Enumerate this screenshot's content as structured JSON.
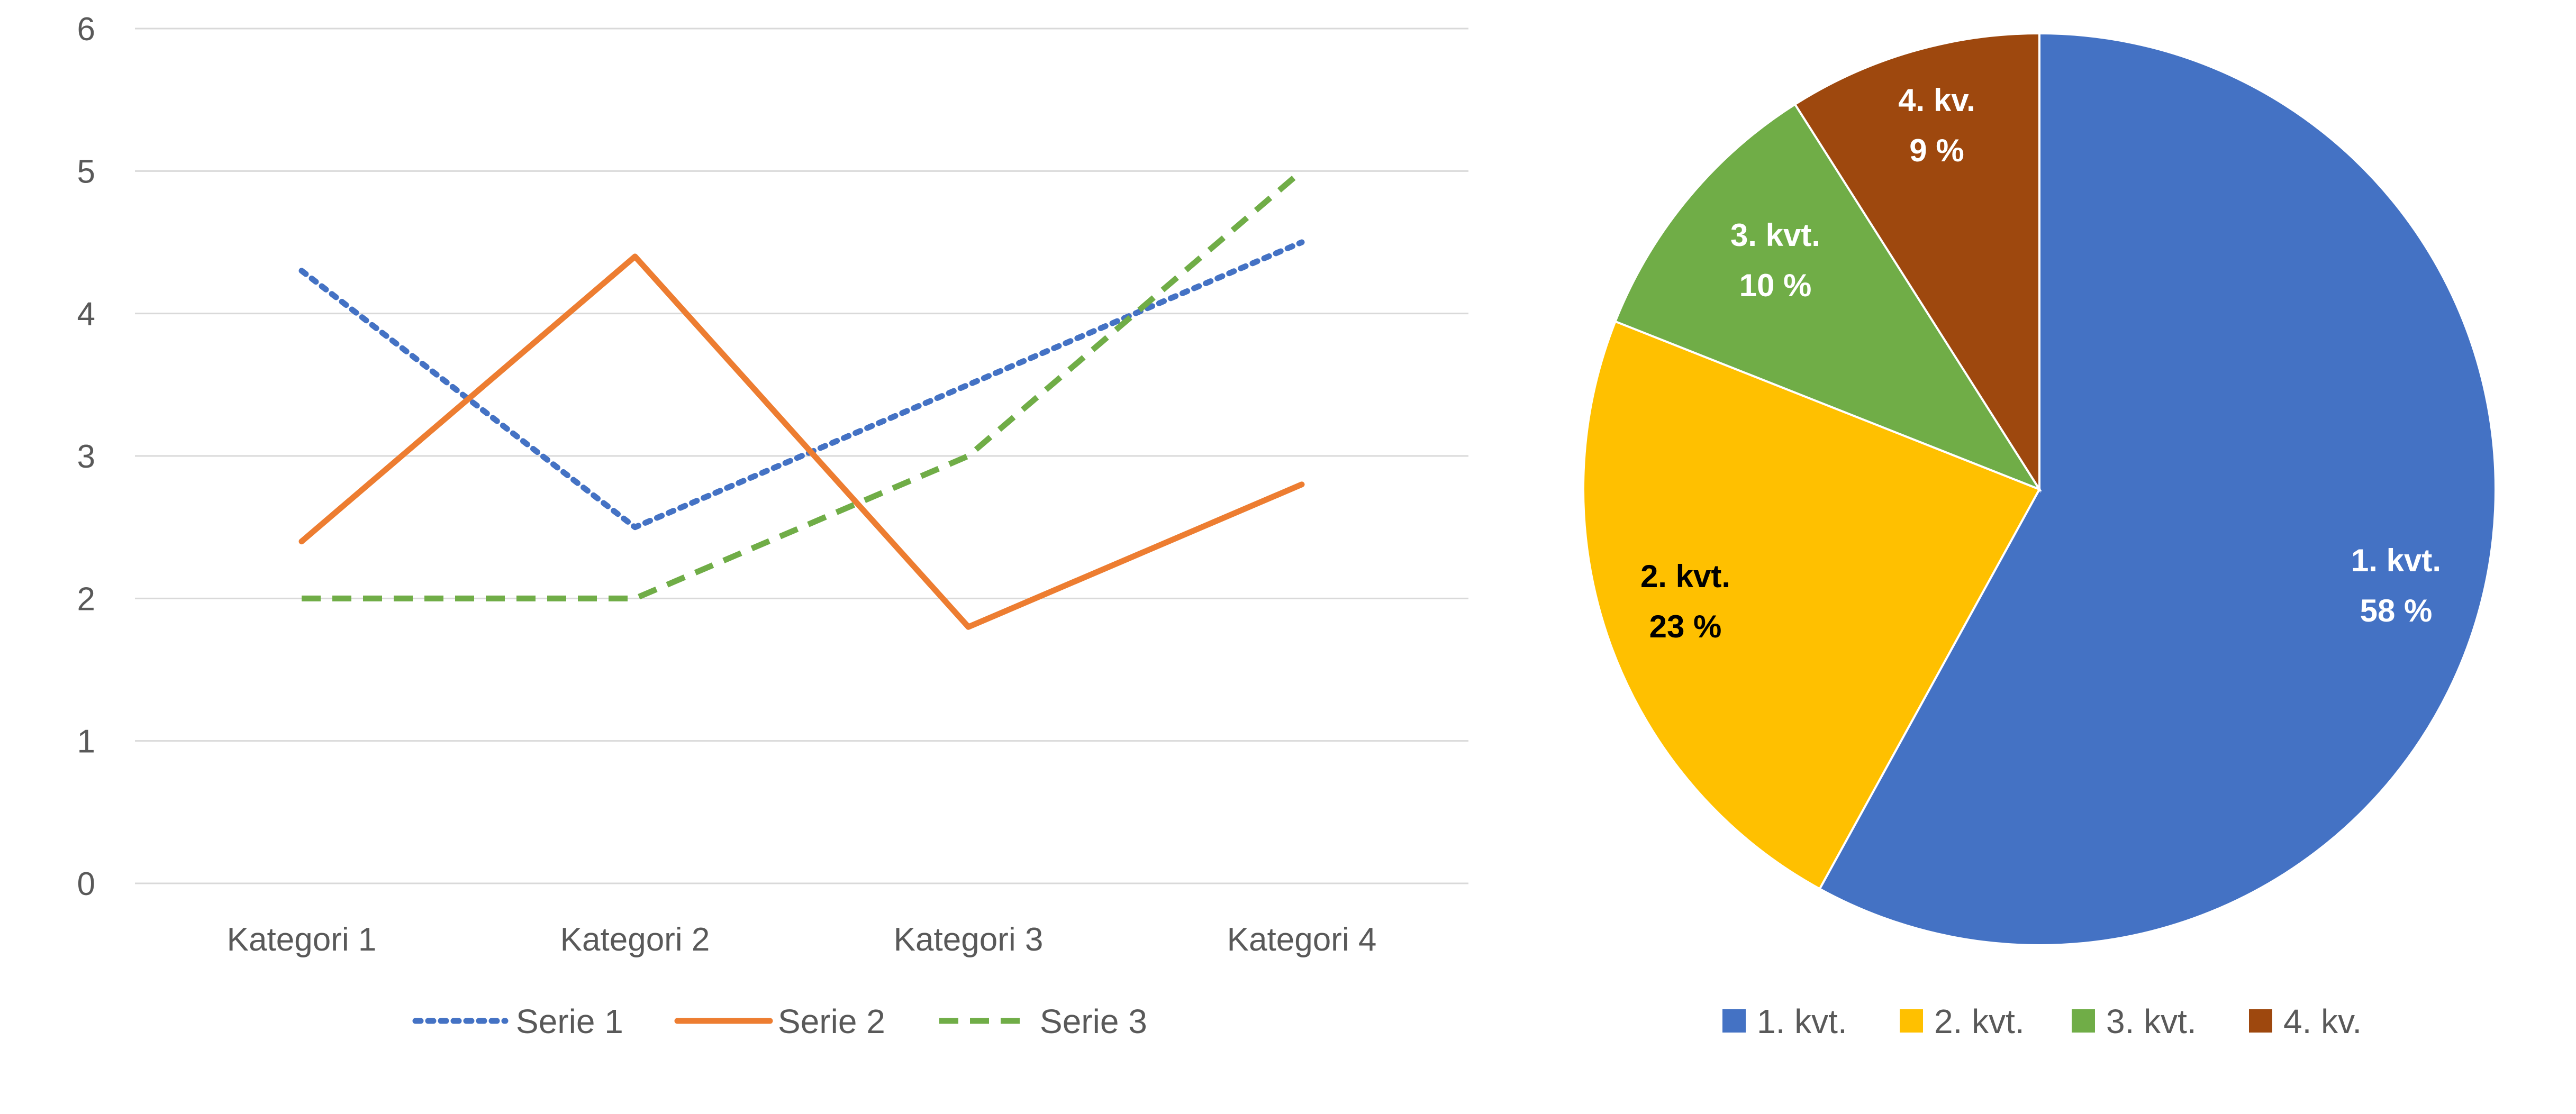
{
  "chart_data": [
    {
      "type": "line",
      "categories": [
        "Kategori 1",
        "Kategori 2",
        "Kategori 3",
        "Kategori 4"
      ],
      "series": [
        {
          "name": "Serie 1",
          "values": [
            4.3,
            2.5,
            3.5,
            4.5
          ],
          "color": "#4472C4",
          "dash": "dotted"
        },
        {
          "name": "Serie 2",
          "values": [
            2.4,
            4.4,
            1.8,
            2.8
          ],
          "color": "#ED7D31",
          "dash": "solid"
        },
        {
          "name": "Serie 3",
          "values": [
            2,
            2,
            3,
            5
          ],
          "color": "#70AD47",
          "dash": "dashed"
        }
      ],
      "ylim": [
        0,
        6
      ],
      "yticks": [
        "0",
        "1",
        "2",
        "3",
        "4",
        "5",
        "6"
      ],
      "grid": true,
      "legend": "bottom",
      "title": "",
      "xlabel": "",
      "ylabel": ""
    },
    {
      "type": "pie",
      "slices": [
        {
          "label": "1. kvt.",
          "value": 58,
          "value_label": "58 %",
          "color": "#4472C4",
          "label_color": "#FFFFFF"
        },
        {
          "label": "2. kvt.",
          "value": 23,
          "value_label": "23 %",
          "color": "#FFC000",
          "label_color": "#000000"
        },
        {
          "label": "3. kvt.",
          "value": 10,
          "value_label": "10 %",
          "color": "#70AD47",
          "label_color": "#FFFFFF"
        },
        {
          "label": "4. kv.",
          "value": 9,
          "value_label": "9 %",
          "color": "#9E480E",
          "label_color": "#FFFFFF"
        }
      ],
      "legend": "bottom",
      "title": ""
    }
  ]
}
